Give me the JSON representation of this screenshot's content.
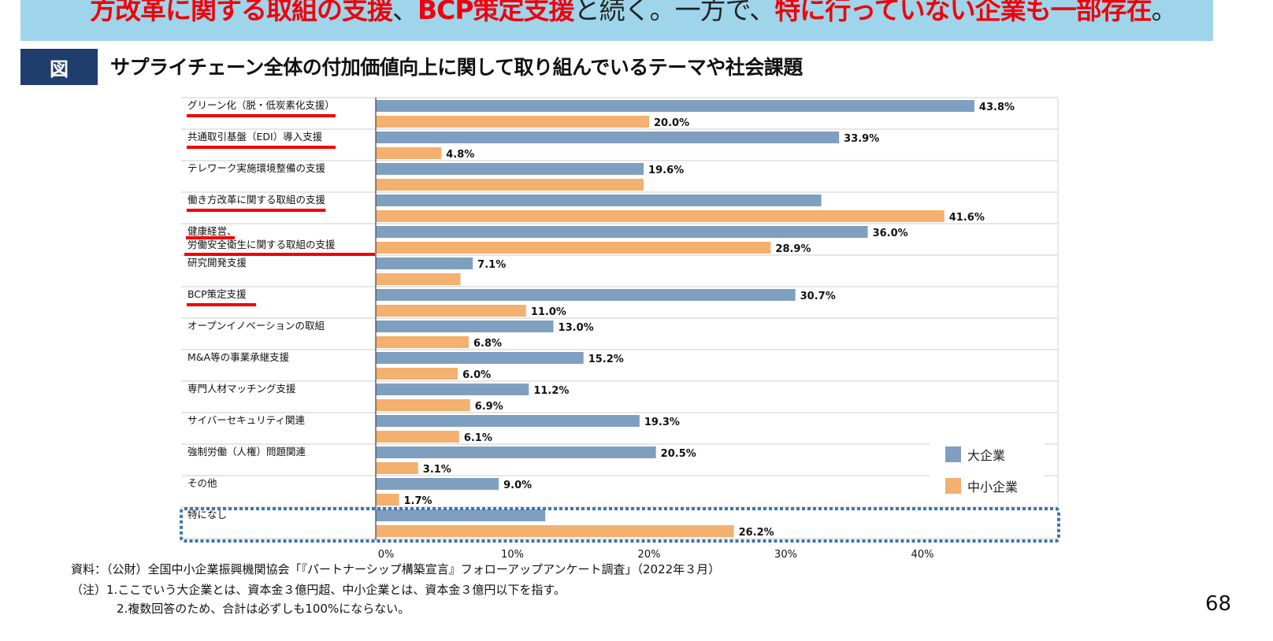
{
  "banner": {
    "parts": [
      {
        "text": "方改革に関する取組の支援",
        "color": "#f0000a"
      },
      {
        "text": "、",
        "color": "#222222"
      },
      {
        "text": "BCP策定支援",
        "color": "#f0000a"
      },
      {
        "text": "と続く。一方で、",
        "color": "#222222"
      },
      {
        "text": "特に行っていない企業も一部存在",
        "color": "#f0000a"
      },
      {
        "text": "。",
        "color": "#222222"
      }
    ]
  },
  "figure": {
    "badge": "図",
    "title": "サプライチェーン全体の付加価値向上に関して取り組んでいるテーマや社会課題"
  },
  "chart_data": {
    "type": "bar",
    "orientation": "horizontal",
    "categories": [
      [
        "グリーン化（脱・低炭素化支援）"
      ],
      [
        "共通取引基盤（EDI）導入支援"
      ],
      [
        "テレワーク実施環境整備の支援"
      ],
      [
        "働き方改革に関する取組の支援"
      ],
      [
        "健康経営、",
        "労働安全衛生に関する取組の支援"
      ],
      [
        "研究開発支援"
      ],
      [
        "BCP策定支援"
      ],
      [
        "オープンイノベーションの取組"
      ],
      [
        "M&A等の事業承継支援"
      ],
      [
        "専門人材マッチング支援"
      ],
      [
        "サイバーセキュリティ関連"
      ],
      [
        "強制労働（人権）問題関連"
      ],
      [
        "その他"
      ],
      [
        "特になし"
      ]
    ],
    "underlined_categories": [
      0,
      1,
      3,
      4,
      6
    ],
    "highlighted_category": 13,
    "series": [
      {
        "name": "大企業",
        "color": "#7f9fc0",
        "values": [
          43.8,
          33.9,
          19.6,
          32.6,
          36.0,
          7.1,
          30.7,
          13.0,
          15.2,
          11.2,
          19.3,
          20.5,
          9.0,
          12.4
        ],
        "labels": [
          "43.8%",
          "33.9%",
          "19.6%",
          null,
          "36.0%",
          "7.1%",
          "30.7%",
          "13.0%",
          "15.2%",
          "11.2%",
          "19.3%",
          "20.5%",
          "9.0%",
          null
        ]
      },
      {
        "name": "中小企業",
        "color": "#f4b06e",
        "values": [
          20.0,
          4.8,
          19.6,
          41.6,
          28.9,
          6.2,
          11.0,
          6.8,
          6.0,
          6.9,
          6.1,
          3.1,
          1.7,
          26.2
        ],
        "labels": [
          "20.0%",
          "4.8%",
          null,
          "41.6%",
          "28.9%",
          null,
          "11.0%",
          "6.8%",
          "6.0%",
          "6.9%",
          "6.1%",
          "3.1%",
          "1.7%",
          "26.2%"
        ]
      }
    ],
    "xlim": [
      0,
      50
    ],
    "xticks": [
      "0%",
      "10%",
      "20%",
      "30%",
      "40%"
    ],
    "xtick_values": [
      0,
      10,
      20,
      30,
      40
    ],
    "grid": "horizontal category separators",
    "legend_position": "bottom-right"
  },
  "footer": {
    "source": "資料：（公財）全国中小企業振興機関協会「『パートナーシップ構築宣言』フォローアップアンケート調査」（2022年３月）",
    "note1": "（注）1.ここでいう大企業とは、資本金３億円超、中小企業とは、資本金３億円以下を指す。",
    "note2": "2.複数回答のため、合計は必ずしも100%にならない。",
    "page_number": "68"
  }
}
